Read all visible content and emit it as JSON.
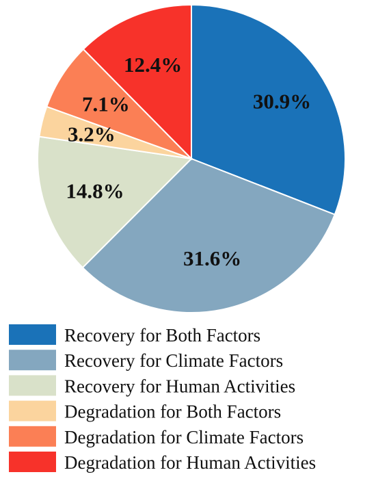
{
  "chart_data": {
    "type": "pie",
    "start_angle_deg": 0,
    "direction": "clockwise",
    "slices": [
      {
        "label": "Recovery for Both Factors",
        "value": 30.9,
        "display": "30.9%",
        "color": "#1a72b8"
      },
      {
        "label": "Recovery for Climate Factors",
        "value": 31.6,
        "display": "31.6%",
        "color": "#84a7bf"
      },
      {
        "label": "Recovery for Human Activities",
        "value": 14.8,
        "display": "14.8%",
        "color": "#d9e1c9"
      },
      {
        "label": "Degradation for Both Factors",
        "value": 3.2,
        "display": "3.2%",
        "color": "#fbd49e"
      },
      {
        "label": "Degradation for Climate Factors",
        "value": 7.1,
        "display": "7.1%",
        "color": "#fb7f55"
      },
      {
        "label": "Degradation for Human Activities",
        "value": 12.4,
        "display": "12.4%",
        "color": "#f7322a"
      }
    ],
    "legend": {
      "placement": "bottom",
      "entries": [
        "Recovery for Both Factors",
        "Recovery for Climate Factors",
        "Recovery for Human Activities",
        "Degradation for Both Factors",
        "Degradation for Climate Factors",
        "Degradation for Human Activities"
      ]
    }
  }
}
